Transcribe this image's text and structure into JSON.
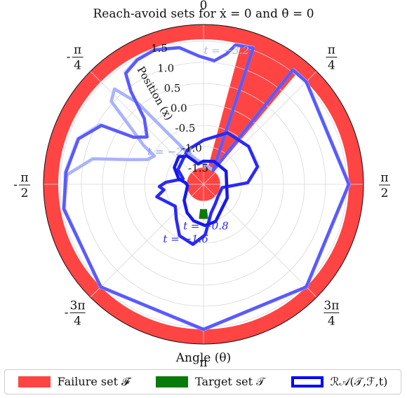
{
  "chart_data": {
    "type": "polar",
    "title": "Reach-avoid sets for ẋ = 0 and θ̇ = 0",
    "xlabel": "Angle (θ)",
    "radial_label": "Position (x)",
    "radial_ticks": [
      "-1.5",
      "-1.0",
      "-0.5",
      "0.0",
      "0.5",
      "1.0",
      "1.5"
    ],
    "radial_range": [
      -1.9,
      1.9
    ],
    "angle_ticks": [
      {
        "angle": 0,
        "num": "0",
        "den": "",
        "sign": ""
      },
      {
        "angle": 45,
        "num": "π",
        "den": "4",
        "sign": ""
      },
      {
        "angle": 90,
        "num": "π",
        "den": "2",
        "sign": ""
      },
      {
        "angle": 135,
        "num": "3π",
        "den": "4",
        "sign": ""
      },
      {
        "angle": 180,
        "num": "π",
        "den": "",
        "sign": ""
      },
      {
        "angle": 225,
        "num": "3π",
        "den": "4",
        "sign": "-"
      },
      {
        "angle": 270,
        "num": "π",
        "den": "2",
        "sign": "-"
      },
      {
        "angle": 315,
        "num": "π",
        "den": "4",
        "sign": "-"
      }
    ],
    "failure_set": {
      "inner_r": 1.55,
      "outer_r": 1.9,
      "wedge": [
        15,
        40
      ],
      "center_r": -1.5,
      "color": "#ff4444"
    },
    "target_set": {
      "theta": [
        173,
        187
      ],
      "r": [
        -1.3,
        -1.08
      ],
      "color": "#0a7a0a"
    },
    "series": [
      {
        "label": "t = −3.2",
        "label_pos": [
          10,
          1.25
        ],
        "color": "#ccd4ff",
        "points": [
          [
            35,
            -1.5
          ],
          [
            38,
            1.56
          ],
          [
            45,
            1.56
          ],
          [
            90,
            1.56
          ],
          [
            135,
            1.56
          ],
          [
            180,
            1.56
          ],
          [
            225,
            1.56
          ],
          [
            260,
            1.45
          ],
          [
            275,
            1.4
          ],
          [
            290,
            1.28
          ],
          [
            300,
            0.95
          ],
          [
            304,
            0.1
          ],
          [
            310,
            -0.15
          ],
          [
            318,
            0.2
          ],
          [
            322,
            0.9
          ],
          [
            325,
            1.35
          ],
          [
            332,
            1.47
          ],
          [
            340,
            1.52
          ],
          [
            350,
            1.4
          ],
          [
            358,
            1.15
          ],
          [
            5,
            1.05
          ],
          [
            10,
            1.25
          ],
          [
            13,
            1.52
          ],
          [
            20,
            1.56
          ],
          [
            35,
            -1.5
          ]
        ]
      },
      {
        "label": "t = −2.4",
        "label_pos": [
          311,
          -0.85
        ],
        "color": "#a8b2ff",
        "points": [
          [
            35,
            -1.5
          ],
          [
            38,
            1.56
          ],
          [
            45,
            1.56
          ],
          [
            90,
            1.56
          ],
          [
            135,
            1.56
          ],
          [
            180,
            1.56
          ],
          [
            225,
            1.56
          ],
          [
            260,
            1.47
          ],
          [
            274,
            1.35
          ],
          [
            283,
            0.8
          ],
          [
            288,
            0.0
          ],
          [
            294,
            -0.45
          ],
          [
            300,
            -0.55
          ],
          [
            303,
            -0.2
          ],
          [
            308,
            0.3
          ],
          [
            312,
            1.05
          ],
          [
            317,
            1.2
          ],
          [
            321,
            0.6
          ],
          [
            325,
            -0.4
          ],
          [
            332,
            -1.0
          ],
          [
            345,
            -1.3
          ],
          [
            10,
            -1.45
          ],
          [
            35,
            -1.5
          ]
        ]
      },
      {
        "label": "t = −1.6",
        "label_pos": [
          197,
          -0.45
        ],
        "color": "#5a5aff",
        "points": [
          [
            35,
            -1.5
          ],
          [
            38,
            1.55
          ],
          [
            45,
            1.55
          ],
          [
            90,
            1.55
          ],
          [
            135,
            1.55
          ],
          [
            180,
            1.55
          ],
          [
            225,
            1.55
          ],
          [
            260,
            1.47
          ],
          [
            275,
            1.38
          ],
          [
            290,
            1.26
          ],
          [
            300,
            0.9
          ],
          [
            304,
            0.1
          ],
          [
            310,
            -0.15
          ],
          [
            318,
            0.2
          ],
          [
            322,
            0.9
          ],
          [
            325,
            1.32
          ],
          [
            332,
            1.45
          ],
          [
            340,
            1.5
          ],
          [
            350,
            1.4
          ],
          [
            358,
            1.15
          ],
          [
            5,
            1.05
          ],
          [
            10,
            1.25
          ],
          [
            13,
            1.5
          ],
          [
            20,
            1.55
          ],
          [
            35,
            -1.5
          ]
        ]
      },
      {
        "label": "t = −0.8",
        "label_pos": [
          177,
          -0.82
        ],
        "color": "#2a2af5",
        "points": [
          [
            100,
            -1.45
          ],
          [
            130,
            -1.45
          ],
          [
            150,
            -1.35
          ],
          [
            165,
            -1.2
          ],
          [
            178,
            -0.7
          ],
          [
            190,
            -0.45
          ],
          [
            205,
            -0.55
          ],
          [
            218,
            -0.85
          ],
          [
            232,
            -1.05
          ],
          [
            255,
            -0.75
          ],
          [
            262,
            -0.95
          ],
          [
            267,
            -0.85
          ],
          [
            273,
            -1.0
          ],
          [
            285,
            -1.4
          ],
          [
            300,
            -1.2
          ],
          [
            335,
            -1.0
          ],
          [
            360,
            -0.85
          ],
          [
            25,
            -0.55
          ],
          [
            50,
            -0.5
          ],
          [
            72,
            -0.55
          ],
          [
            88,
            -0.85
          ],
          [
            100,
            -1.45
          ]
        ]
      },
      {
        "label": "",
        "color": "#1818ee",
        "points": [
          [
            150,
            -1.12
          ],
          [
            162,
            -0.97
          ],
          [
            178,
            -0.92
          ],
          [
            195,
            -1.0
          ],
          [
            210,
            -1.12
          ],
          [
            230,
            -1.3
          ],
          [
            250,
            -1.47
          ],
          [
            265,
            -1.52
          ],
          [
            275,
            -1.47
          ],
          [
            282,
            -1.3
          ],
          [
            300,
            -1.1
          ],
          [
            318,
            -1.02
          ],
          [
            330,
            -1.12
          ],
          [
            338,
            -1.3
          ],
          [
            345,
            -1.4
          ],
          [
            360,
            -1.35
          ],
          [
            25,
            -1.3
          ],
          [
            60,
            -1.28
          ],
          [
            120,
            -1.25
          ],
          [
            150,
            -1.12
          ]
        ]
      }
    ]
  },
  "legend": [
    {
      "label": "Failure set 𝓕",
      "color": "#ff4444"
    },
    {
      "label": "Target set 𝒯",
      "color": "#0a7a0a"
    },
    {
      "label": "ℛ𝒜(𝒯,ℱ,t)",
      "color": "#0000ff"
    }
  ]
}
